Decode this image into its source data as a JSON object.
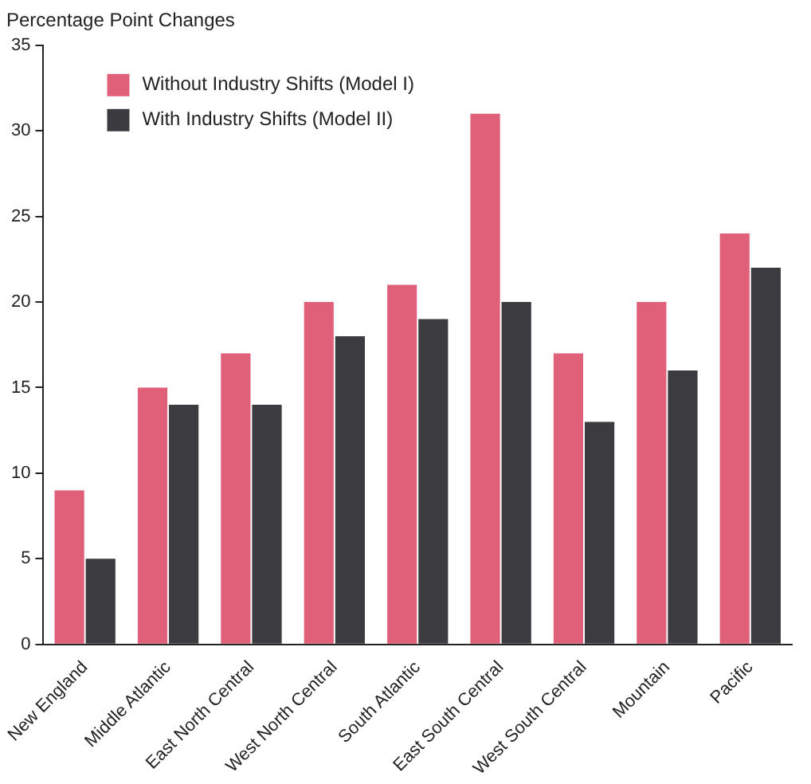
{
  "chart_data": {
    "type": "bar",
    "title": "Percentage Point Changes",
    "categories": [
      "New England",
      "Middle Atlantic",
      "East North Central",
      "West North Central",
      "South Atlantic",
      "East South Central",
      "West South Central",
      "Mountain",
      "Pacific"
    ],
    "series": [
      {
        "name": "Without Industry Shifts (Model I)",
        "color": "#e0607a",
        "values": [
          9,
          15,
          17,
          20,
          21,
          31,
          17,
          20,
          24
        ]
      },
      {
        "name": "With Industry Shifts (Model II)",
        "color": "#3c3c40",
        "values": [
          5,
          14,
          14,
          18,
          19,
          20,
          13,
          16,
          22
        ]
      }
    ],
    "ylim": [
      0,
      35
    ],
    "yticks": [
      0,
      5,
      10,
      15,
      20,
      25,
      30,
      35
    ],
    "grid": false,
    "legend": "top left"
  }
}
